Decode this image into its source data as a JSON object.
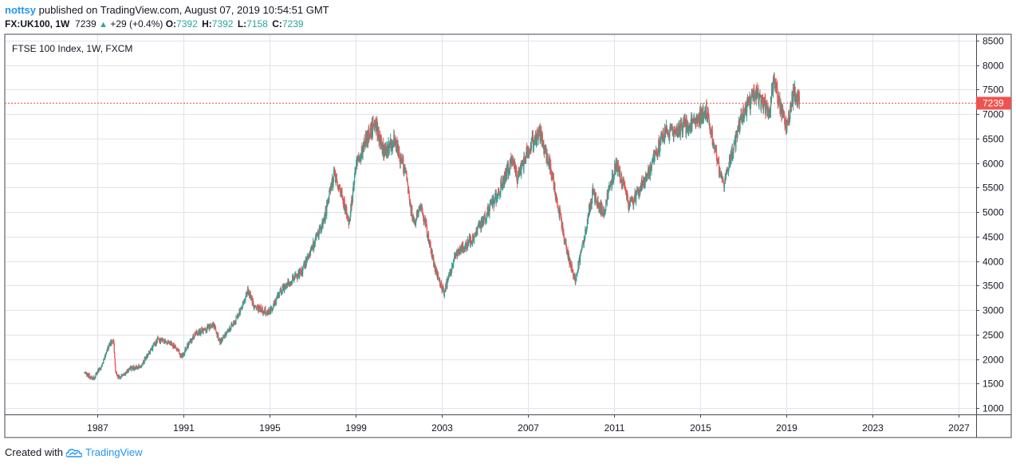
{
  "header": {
    "author": "nottsy",
    "published_text": "published on TradingView.com, August 07, 2019 10:54:51 GMT",
    "symbol": "FX:UK100, 1W",
    "last": "7239",
    "change": "+29 (+0.4%)",
    "open_label": "O:",
    "open": "7392",
    "high_label": "H:",
    "high": "7392",
    "low_label": "L:",
    "low": "7158",
    "close_label": "C:",
    "close": "7239"
  },
  "footer": {
    "created_with": "Created with",
    "brand": "TradingView"
  },
  "colors": {
    "up": "#26a69a",
    "down": "#ef5350",
    "price_line": "#ef5350",
    "brand": "#2196f3",
    "grid": "#e0e3eb"
  },
  "icons": {
    "logo": "tradingview-cloud-icon",
    "up_arrow": "triangle-up-icon"
  },
  "chart_data": {
    "type": "candlestick",
    "title": "FTSE 100 Index, 1W, FXCM",
    "timeframe": "1W",
    "x_ticks": [
      "1987",
      "1991",
      "1995",
      "1999",
      "2003",
      "2007",
      "2011",
      "2015",
      "2019",
      "2023",
      "2027"
    ],
    "y_ticks": [
      1000,
      1500,
      2000,
      2500,
      3000,
      3500,
      4000,
      4500,
      5000,
      5500,
      6000,
      6500,
      7000,
      7500,
      8000,
      8500
    ],
    "xlim": [
      1982.7,
      2027.8
    ],
    "ylim": [
      870,
      8630
    ],
    "last_price": 7239,
    "last_price_label": "7239",
    "grid": true,
    "series_path": [
      [
        1986.4,
        1720
      ],
      [
        1986.8,
        1600
      ],
      [
        1987.2,
        1850
      ],
      [
        1987.55,
        2300
      ],
      [
        1987.75,
        2400
      ],
      [
        1987.85,
        1700
      ],
      [
        1988.0,
        1620
      ],
      [
        1988.5,
        1800
      ],
      [
        1989.0,
        1850
      ],
      [
        1989.8,
        2400
      ],
      [
        1990.5,
        2300
      ],
      [
        1990.9,
        2050
      ],
      [
        1991.5,
        2500
      ],
      [
        1992.0,
        2600
      ],
      [
        1992.4,
        2700
      ],
      [
        1992.7,
        2350
      ],
      [
        1993.5,
        2850
      ],
      [
        1994.0,
        3400
      ],
      [
        1994.3,
        3050
      ],
      [
        1995.0,
        2950
      ],
      [
        1995.5,
        3400
      ],
      [
        1996.5,
        3800
      ],
      [
        1997.5,
        4800
      ],
      [
        1998.0,
        5800
      ],
      [
        1998.7,
        4800
      ],
      [
        1999.0,
        5900
      ],
      [
        1999.5,
        6500
      ],
      [
        1999.9,
        6850
      ],
      [
        2000.3,
        6200
      ],
      [
        2000.8,
        6450
      ],
      [
        2001.3,
        5800
      ],
      [
        2001.7,
        4700
      ],
      [
        2002.0,
        5200
      ],
      [
        2002.7,
        3800
      ],
      [
        2003.1,
        3350
      ],
      [
        2003.6,
        4100
      ],
      [
        2004.5,
        4500
      ],
      [
        2005.5,
        5300
      ],
      [
        2006.3,
        6100
      ],
      [
        2006.5,
        5650
      ],
      [
        2007.0,
        6300
      ],
      [
        2007.5,
        6650
      ],
      [
        2008.0,
        6000
      ],
      [
        2008.8,
        4200
      ],
      [
        2009.2,
        3600
      ],
      [
        2010.0,
        5400
      ],
      [
        2010.5,
        5000
      ],
      [
        2011.1,
        6000
      ],
      [
        2011.7,
        5100
      ],
      [
        2012.5,
        5700
      ],
      [
        2013.3,
        6600
      ],
      [
        2014.5,
        6800
      ],
      [
        2015.3,
        7050
      ],
      [
        2015.8,
        6000
      ],
      [
        2016.1,
        5600
      ],
      [
        2016.9,
        6900
      ],
      [
        2017.5,
        7450
      ],
      [
        2018.2,
        7050
      ],
      [
        2018.4,
        7700
      ],
      [
        2018.9,
        6900
      ],
      [
        2019.0,
        6700
      ],
      [
        2019.3,
        7400
      ],
      [
        2019.5,
        7350
      ],
      [
        2019.6,
        7239
      ]
    ]
  }
}
